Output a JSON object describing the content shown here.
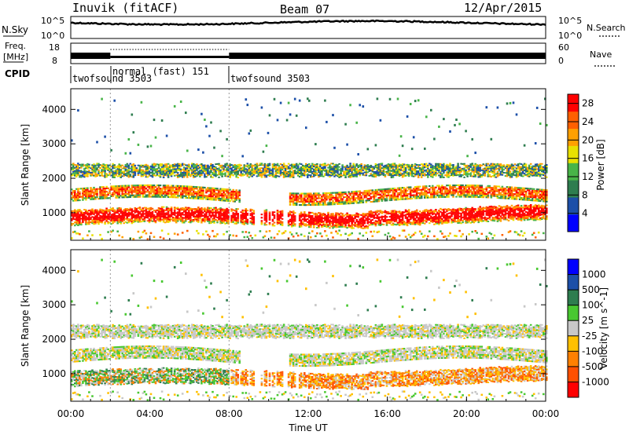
{
  "header": {
    "station": "Inuvik (fitACF)",
    "beam": "Beam 07",
    "date": "12/Apr/2015"
  },
  "strips": {
    "nsky_label": "N.Sky",
    "nsky_ticks": [
      "10^5",
      "10^0"
    ],
    "nsearch_label": "N.Search",
    "nsearch_ticks": [
      "10^5",
      "10^0"
    ],
    "freq_label": "Freq.",
    "freq_unit": "[MHz]",
    "freq_ticks": [
      "18",
      "8"
    ],
    "nave_label": "Nave",
    "nave_ticks": [
      "60",
      "0"
    ],
    "cpid_label": "CPID",
    "cpid_segments": [
      {
        "label": "twofsound 3503",
        "start_h": 0,
        "end_h": 2
      },
      {
        "label": "normal (fast) 151",
        "start_h": 2,
        "end_h": 8
      },
      {
        "label": "twofsound 3503",
        "start_h": 8,
        "end_h": 24
      }
    ]
  },
  "colors": {
    "power": [
      "#0000ff",
      "#1c4fa8",
      "#2e7d4f",
      "#48b448",
      "#e8e000",
      "#ffa000",
      "#ff6000",
      "#ff0000"
    ],
    "velocity": [
      "#0000ff",
      "#1c4fa8",
      "#2e7d4f",
      "#48c830",
      "#c8c8c8",
      "#ffc000",
      "#ff8000",
      "#ff5000",
      "#ff0000"
    ]
  },
  "chart_data": [
    {
      "type": "heatmap",
      "name": "power",
      "ylabel": "Slant Range [km]",
      "yticks": [
        "1000",
        "2000",
        "3000",
        "4000"
      ],
      "ylim": [
        200,
        4600
      ],
      "xlim": [
        0,
        24
      ],
      "colorbar_label": "Power [dB]",
      "colorbar_ticks": [
        "4",
        "8",
        "12",
        "16",
        "20",
        "24",
        "28"
      ],
      "colorbar_range": [
        0,
        30
      ]
    },
    {
      "type": "heatmap",
      "name": "velocity",
      "ylabel": "Slant Range [km]",
      "yticks": [
        "1000",
        "2000",
        "3000",
        "4000"
      ],
      "ylim": [
        200,
        4600
      ],
      "xlim": [
        0,
        24
      ],
      "colorbar_label": "Velocity [m s^-1]",
      "colorbar_ticks": [
        "1000",
        "500",
        "100",
        "25",
        "-25",
        "-100",
        "-500",
        "-1000"
      ]
    }
  ],
  "x_axis": {
    "label": "Time UT",
    "ticks": [
      "00:00",
      "04:00",
      "08:00",
      "12:00",
      "16:00",
      "20:00",
      "00:00"
    ]
  }
}
